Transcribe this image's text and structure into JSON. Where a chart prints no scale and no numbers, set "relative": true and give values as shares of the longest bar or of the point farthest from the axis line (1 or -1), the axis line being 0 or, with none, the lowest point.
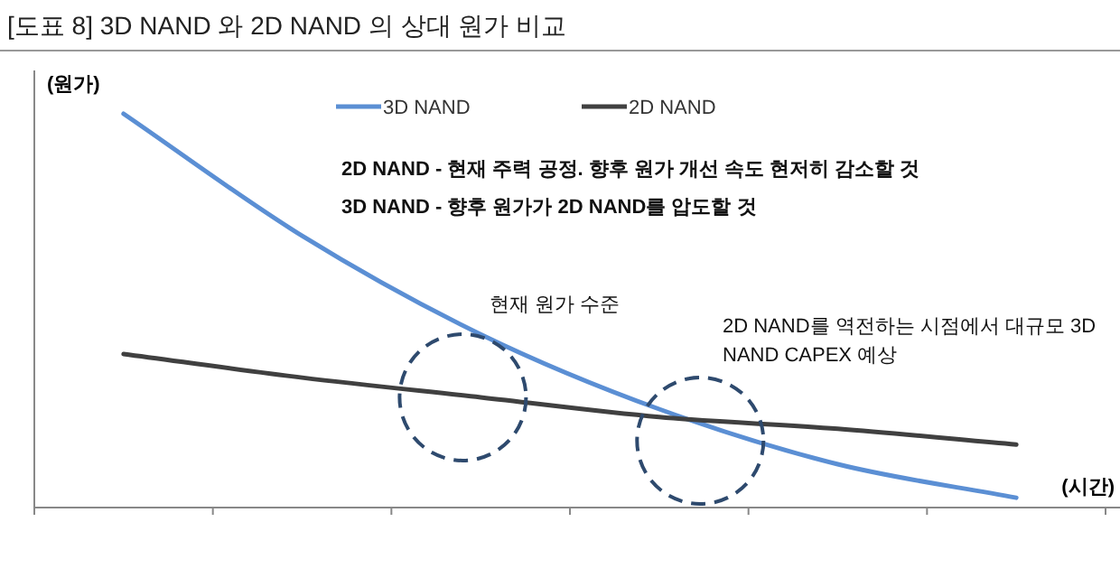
{
  "chart_data": {
    "type": "line",
    "relative": true,
    "title": "[도표 8] 3D NAND 와 2D NAND 의 상대 원가 비교",
    "ylabel": "(원가)",
    "xlabel": "(시간)",
    "categories": [
      null,
      null,
      null,
      null,
      null,
      null
    ],
    "series": [
      {
        "name": "3D NAND",
        "color": "#5b8fd4",
        "values": [
          1,
          0.69,
          0.44,
          0.25,
          0.11,
          0.025
        ]
      },
      {
        "name": "2D NAND",
        "color": "#404040",
        "values": [
          0.39,
          0.33,
          0.28,
          0.23,
          0.2,
          0.16
        ]
      }
    ],
    "legend": "top",
    "annotations": [
      "2D NAND - 현재 주력 공정. 향후 원가 개선 속도 현저히 감소할 것",
      "3D NAND - 향후 원가가 2D NAND를 압도할 것",
      "현재 원가 수준",
      "2D NAND를 역전하는 시점에서 대규모 3D NAND CAPEX 예상"
    ]
  }
}
